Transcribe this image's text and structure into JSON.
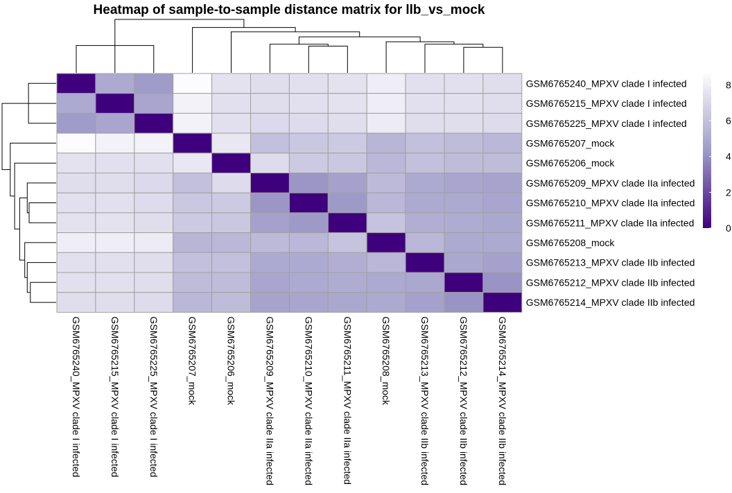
{
  "chart_data": {
    "type": "heatmap",
    "title": "Heatmap of sample-to-sample distance matrix for llb_vs_mock",
    "row_labels": [
      "GSM6765240_MPXV clade I infected",
      "GSM6765215_MPXV clade I infected",
      "GSM6765225_MPXV clade I infected",
      "GSM6765207_mock",
      "GSM6765206_mock",
      "GSM6765209_MPXV clade IIa infected",
      "GSM6765210_MPXV clade IIa infected",
      "GSM6765211_MPXV clade IIa infected",
      "GSM6765208_mock",
      "GSM6765213_MPXV clade IIb infected",
      "GSM6765212_MPXV clade IIb infected",
      "GSM6765214_MPXV clade IIb infected"
    ],
    "col_labels": [
      "GSM6765240_MPXV clade I infected",
      "GSM6765215_MPXV clade I infected",
      "GSM6765225_MPXV clade I infected",
      "GSM6765207_mock",
      "GSM6765206_mock",
      "GSM6765209_MPXV clade IIa infected",
      "GSM6765210_MPXV clade IIa infected",
      "GSM6765211_MPXV clade IIa infected",
      "GSM6765208_mock",
      "GSM6765213_MPXV clade IIb infected",
      "GSM6765212_MPXV clade IIb infected",
      "GSM6765214_MPXV clade IIb infected"
    ],
    "values": [
      [
        0.0,
        5.0,
        4.4,
        8.6,
        7.5,
        7.3,
        7.4,
        7.5,
        8.0,
        7.4,
        7.4,
        7.3
      ],
      [
        5.0,
        0.0,
        4.8,
        8.2,
        7.4,
        7.3,
        7.4,
        7.5,
        8.0,
        7.4,
        7.4,
        7.3
      ],
      [
        4.4,
        4.8,
        0.0,
        8.2,
        7.4,
        7.1,
        7.2,
        7.3,
        7.9,
        7.3,
        7.3,
        7.2
      ],
      [
        8.6,
        8.2,
        8.2,
        0.0,
        7.7,
        6.0,
        6.3,
        6.4,
        5.5,
        6.0,
        5.8,
        5.6
      ],
      [
        7.5,
        7.4,
        7.4,
        7.7,
        0.0,
        7.2,
        6.4,
        6.3,
        5.6,
        6.0,
        5.8,
        5.8
      ],
      [
        7.3,
        7.3,
        7.1,
        6.0,
        7.2,
        0.0,
        4.2,
        4.6,
        5.7,
        5.0,
        4.8,
        4.7
      ],
      [
        7.4,
        7.4,
        7.2,
        6.3,
        6.4,
        4.2,
        0.0,
        4.3,
        5.6,
        5.0,
        5.0,
        4.8
      ],
      [
        7.5,
        7.5,
        7.3,
        6.4,
        6.3,
        4.6,
        4.3,
        0.0,
        6.1,
        5.2,
        5.1,
        4.9
      ],
      [
        8.0,
        8.0,
        7.9,
        5.5,
        5.6,
        5.7,
        5.6,
        6.1,
        0.0,
        5.6,
        5.0,
        5.0
      ],
      [
        7.4,
        7.4,
        7.3,
        6.0,
        6.0,
        5.0,
        5.0,
        5.2,
        5.6,
        0.0,
        4.9,
        4.6
      ],
      [
        7.4,
        7.4,
        7.3,
        5.8,
        5.8,
        4.8,
        5.0,
        5.1,
        5.0,
        4.9,
        0.0,
        4.1
      ],
      [
        7.3,
        7.3,
        7.2,
        5.6,
        5.8,
        4.7,
        4.8,
        4.9,
        5.0,
        4.6,
        4.1,
        0.0
      ]
    ],
    "colorbar": {
      "range": [
        0,
        8.6
      ],
      "ticks": [
        "0",
        "2",
        "4",
        "6",
        "8"
      ],
      "tick_values": [
        0,
        2,
        4,
        6,
        8
      ],
      "low_color": "#3f007d",
      "mid_color": "#9e9ac8",
      "high_color": "#fcfbfd"
    },
    "dendrogram": {
      "leaf_order": [
        0,
        1,
        2,
        3,
        4,
        5,
        6,
        7,
        8,
        9,
        10,
        11
      ],
      "merges": [
        [
          0,
          2,
          4.4
        ],
        [
          1,
          12,
          4.8
        ],
        [
          10,
          11,
          4.1
        ],
        [
          9,
          14,
          4.6
        ],
        [
          8,
          15,
          5.0
        ],
        [
          6,
          7,
          4.3
        ],
        [
          5,
          17,
          4.6
        ],
        [
          16,
          18,
          5.8
        ],
        [
          4,
          19,
          6.6
        ],
        [
          3,
          20,
          7.3
        ],
        [
          13,
          21,
          8.6
        ]
      ]
    },
    "grid_color": "#a0a0a0",
    "line_color": "#000000"
  }
}
